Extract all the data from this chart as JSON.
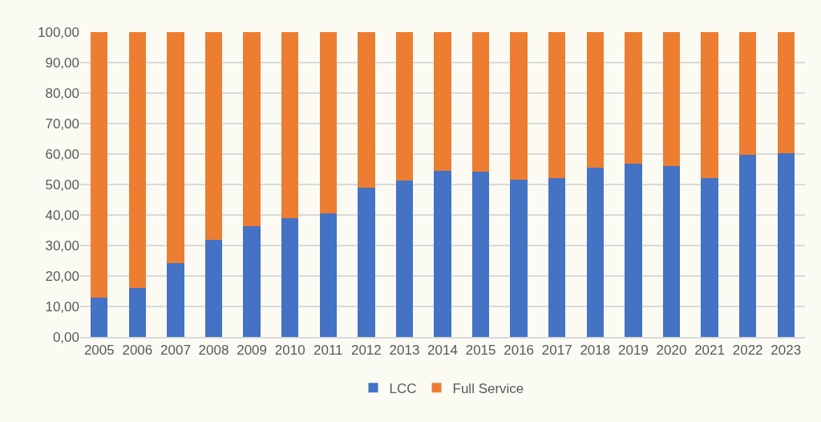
{
  "chart_data": {
    "type": "bar",
    "stacked": true,
    "categories": [
      "2005",
      "2006",
      "2007",
      "2008",
      "2009",
      "2010",
      "2011",
      "2012",
      "2013",
      "2014",
      "2015",
      "2016",
      "2017",
      "2018",
      "2019",
      "2020",
      "2021",
      "2022",
      "2023"
    ],
    "series": [
      {
        "name": "LCC",
        "color": "#4472c4",
        "values": [
          12.8,
          16.0,
          24.3,
          31.8,
          36.4,
          38.9,
          40.5,
          48.9,
          51.2,
          54.4,
          54.2,
          51.5,
          52.2,
          55.4,
          56.8,
          56.0,
          52.2,
          59.7,
          60.3
        ]
      },
      {
        "name": "Full Service",
        "color": "#ed7d31",
        "values": [
          87.2,
          84.0,
          75.7,
          68.2,
          63.6,
          61.1,
          59.5,
          51.1,
          48.8,
          45.6,
          45.8,
          48.5,
          47.8,
          44.6,
          43.2,
          44.0,
          47.8,
          40.3,
          39.7
        ]
      }
    ],
    "ylim": [
      0,
      100
    ],
    "yticks": [
      {
        "value": 0,
        "label": "0,00"
      },
      {
        "value": 10,
        "label": "10,00"
      },
      {
        "value": 20,
        "label": "20,00"
      },
      {
        "value": 30,
        "label": "30,00"
      },
      {
        "value": 40,
        "label": "40,00"
      },
      {
        "value": 50,
        "label": "50,00"
      },
      {
        "value": 60,
        "label": "60,00"
      },
      {
        "value": 70,
        "label": "70,00"
      },
      {
        "value": 80,
        "label": "80,00"
      },
      {
        "value": 90,
        "label": "90,00"
      },
      {
        "value": 100,
        "label": "100,00"
      }
    ],
    "grid": "y",
    "legend": "bottom"
  }
}
